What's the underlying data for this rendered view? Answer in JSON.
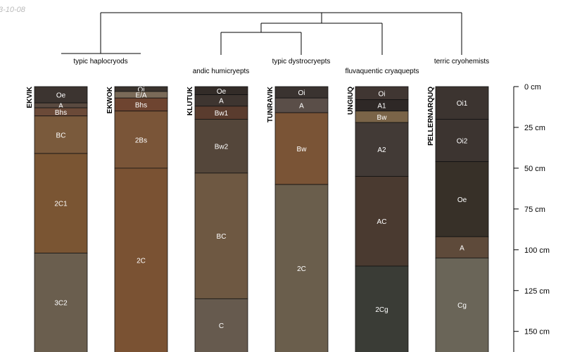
{
  "date_stamp": "3-10-08",
  "depth_unit": "cm",
  "depth_axis": {
    "min": 0,
    "max": 160,
    "ticks": [
      0,
      25,
      50,
      75,
      100,
      125,
      150
    ],
    "tick_labels": [
      "0 cm",
      "25 cm",
      "50 cm",
      "75 cm",
      "100 cm",
      "125 cm",
      "150 cm"
    ]
  },
  "dendrogram": {
    "root": {
      "left": {
        "left": {
          "leaf": 0
        },
        "right": {
          "leaf": 1
        }
      },
      "right": {
        "left": {
          "left": {
            "leaf": 2
          },
          "right": {
            "leaf": 3
          }
        },
        "right": {
          "leaf": 4
        }
      },
      "far_right": {
        "leaf": 5
      }
    }
  },
  "profiles": [
    {
      "name": "EKVIK",
      "taxon": "typic haplocryods",
      "horizons": [
        {
          "name": "Oe",
          "top": 0,
          "bottom": 10,
          "color": "#3c3430"
        },
        {
          "name": "A",
          "top": 10,
          "bottom": 13,
          "color": "#5a4a40"
        },
        {
          "name": "Bhs",
          "top": 13,
          "bottom": 18,
          "color": "#6b4a38"
        },
        {
          "name": "BC",
          "top": 18,
          "bottom": 41,
          "color": "#7a5a3c"
        },
        {
          "name": "2C1",
          "top": 41,
          "bottom": 102,
          "color": "#7a5533"
        },
        {
          "name": "3C2",
          "top": 102,
          "bottom": 165,
          "color": "#6a5e4e"
        }
      ]
    },
    {
      "name": "EKWOK",
      "taxon": "typic haplocryods",
      "horizons": [
        {
          "name": "Oi",
          "top": 0,
          "bottom": 3,
          "color": "#3a332e"
        },
        {
          "name": "E/A",
          "top": 3,
          "bottom": 7,
          "color": "#7a6a58"
        },
        {
          "name": "Bhs",
          "top": 7,
          "bottom": 15,
          "color": "#6e4430"
        },
        {
          "name": "2Bs",
          "top": 15,
          "bottom": 50,
          "color": "#7a5538"
        },
        {
          "name": "2C",
          "top": 50,
          "bottom": 165,
          "color": "#7a5233"
        }
      ]
    },
    {
      "name": "KLUTUK",
      "taxon": "andic humicryepts",
      "horizons": [
        {
          "name": "Oe",
          "top": 0,
          "bottom": 5,
          "color": "#332c28"
        },
        {
          "name": "A",
          "top": 5,
          "bottom": 12,
          "color": "#3e3530"
        },
        {
          "name": "Bw1",
          "top": 12,
          "bottom": 20,
          "color": "#5a3c2e"
        },
        {
          "name": "Bw2",
          "top": 20,
          "bottom": 53,
          "color": "#54463a"
        },
        {
          "name": "BC",
          "top": 53,
          "bottom": 130,
          "color": "#6e5842"
        },
        {
          "name": "C",
          "top": 130,
          "bottom": 165,
          "color": "#665a4e"
        }
      ]
    },
    {
      "name": "TUNRAVIK",
      "taxon": "typic dystrocryepts",
      "horizons": [
        {
          "name": "Oi",
          "top": 0,
          "bottom": 7,
          "color": "#3a3330"
        },
        {
          "name": "A",
          "top": 7,
          "bottom": 16,
          "color": "#5a4e48"
        },
        {
          "name": "Bw",
          "top": 16,
          "bottom": 60,
          "color": "#7a5436"
        },
        {
          "name": "2C",
          "top": 60,
          "bottom": 165,
          "color": "#6a5e4c"
        }
      ]
    },
    {
      "name": "UNGIUQ",
      "taxon": "fluvaquentic cryaquepts",
      "horizons": [
        {
          "name": "Oi",
          "top": 0,
          "bottom": 8,
          "color": "#403632"
        },
        {
          "name": "A1",
          "top": 8,
          "bottom": 15,
          "color": "#2e2826"
        },
        {
          "name": "Bw",
          "top": 15,
          "bottom": 22,
          "color": "#7a6448"
        },
        {
          "name": "A2",
          "top": 22,
          "bottom": 55,
          "color": "#423a36"
        },
        {
          "name": "AC",
          "top": 55,
          "bottom": 110,
          "color": "#4a3a30"
        },
        {
          "name": "2Cg",
          "top": 110,
          "bottom": 165,
          "color": "#3a3c36"
        }
      ]
    },
    {
      "name": "PELLERNARQUQ",
      "taxon": "terric cryohemists",
      "horizons": [
        {
          "name": "Oi1",
          "top": 0,
          "bottom": 20,
          "color": "#3c3430"
        },
        {
          "name": "Oi2",
          "top": 20,
          "bottom": 46,
          "color": "#3c3430"
        },
        {
          "name": "Oe",
          "top": 46,
          "bottom": 92,
          "color": "#373028"
        },
        {
          "name": "A",
          "top": 92,
          "bottom": 105,
          "color": "#5e4a3a"
        },
        {
          "name": "Cg",
          "top": 105,
          "bottom": 165,
          "color": "#6a6558"
        }
      ]
    }
  ]
}
